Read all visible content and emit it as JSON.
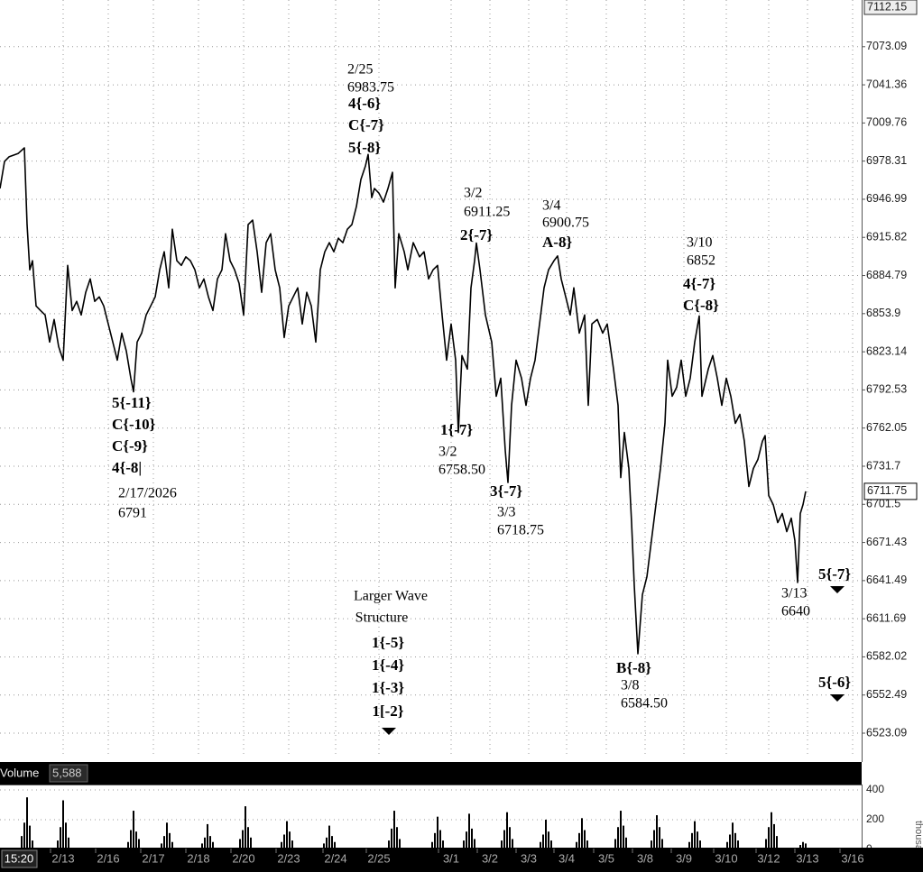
{
  "chart_data": {
    "type": "line",
    "log_scale": true,
    "grid": true,
    "xlim": [
      0,
      955
    ],
    "xticks": [
      {
        "value": 70,
        "label": "2/13"
      },
      {
        "value": 120,
        "label": "2/16"
      },
      {
        "value": 170,
        "label": "2/17"
      },
      {
        "value": 220,
        "label": "2/18"
      },
      {
        "value": 270,
        "label": "2/20"
      },
      {
        "value": 320,
        "label": "2/23"
      },
      {
        "value": 372,
        "label": "2/24"
      },
      {
        "value": 420,
        "label": "2/25"
      },
      {
        "value": 500,
        "label": "3/1"
      },
      {
        "value": 543,
        "label": "3/2"
      },
      {
        "value": 586,
        "label": "3/3"
      },
      {
        "value": 628,
        "label": "3/4"
      },
      {
        "value": 672,
        "label": "3/5"
      },
      {
        "value": 715,
        "label": "3/8"
      },
      {
        "value": 758,
        "label": "3/9"
      },
      {
        "value": 805,
        "label": "3/10"
      },
      {
        "value": 852,
        "label": "3/12"
      },
      {
        "value": 895,
        "label": "3/13"
      },
      {
        "value": 945,
        "label": "3/16"
      }
    ],
    "cursor_label": "15:20",
    "ylim": [
      6504.4,
      7112.15
    ],
    "yticks": [
      7073.09,
      7041.36,
      7009.76,
      6978.31,
      6946.99,
      6915.82,
      6884.79,
      6853.9,
      6823.14,
      6792.53,
      6762.05,
      6731.7,
      6701.5,
      6671.43,
      6641.49,
      6611.69,
      6582.02,
      6552.49,
      6523.09
    ],
    "last_price": 6711.75,
    "x": [
      0,
      5,
      10,
      20,
      27,
      30,
      33,
      36,
      40,
      45,
      50,
      55,
      60,
      65,
      70,
      75,
      80,
      85,
      90,
      95,
      100,
      105,
      110,
      115,
      120,
      125,
      130,
      135,
      140,
      145,
      148,
      152,
      157,
      162,
      167,
      172,
      177,
      182,
      187,
      191,
      196,
      201,
      206,
      211,
      216,
      221,
      226,
      231,
      236,
      241,
      246,
      250,
      255,
      260,
      265,
      270,
      275,
      280,
      285,
      290,
      295,
      300,
      305,
      310,
      315,
      320,
      325,
      330,
      335,
      340,
      345,
      350,
      355,
      360,
      365,
      370,
      375,
      380,
      385,
      390,
      395,
      400,
      405,
      408,
      412,
      415,
      420,
      425,
      430,
      435,
      438,
      442,
      448,
      452,
      458,
      465,
      470,
      475,
      480,
      485,
      490,
      495,
      500,
      505,
      508,
      512,
      518,
      522,
      526,
      528,
      532,
      538,
      545,
      550,
      555,
      560,
      563,
      567,
      572,
      578,
      583,
      588,
      593,
      598,
      603,
      608,
      614,
      618,
      622,
      627,
      632,
      636,
      642,
      648,
      652,
      656,
      662,
      668,
      673,
      680,
      685,
      688,
      692,
      697,
      700,
      703,
      707,
      712,
      717,
      722,
      727,
      732,
      737,
      740,
      745,
      750,
      755,
      760,
      765,
      770,
      775,
      778,
      785,
      790,
      795,
      800,
      805,
      810,
      815,
      820,
      825,
      830,
      835,
      840,
      845,
      848,
      852,
      857,
      862,
      867,
      872,
      877,
      881,
      884,
      887,
      890,
      893
    ],
    "series": [
      {
        "color": "#000000",
        "values": [
          6955.8,
          6978,
          6981.8,
          6984.5,
          6989.2,
          6926.2,
          6889.4,
          6896.8,
          6860.1,
          6856.4,
          6852.8,
          6831,
          6849.2,
          6827.3,
          6816.4,
          6893,
          6856.4,
          6863.8,
          6852.8,
          6871.1,
          6882,
          6863.8,
          6867.5,
          6860.1,
          6845.5,
          6831,
          6816.4,
          6838.2,
          6823.7,
          6801.9,
          6791,
          6831,
          6838.2,
          6852.8,
          6860.1,
          6867.5,
          6889.4,
          6904.1,
          6874.8,
          6922.5,
          6896.8,
          6893,
          6900,
          6896.8,
          6889.4,
          6874.8,
          6882,
          6867.5,
          6856.4,
          6882,
          6889.4,
          6918.8,
          6896.8,
          6889.4,
          6878.4,
          6852.8,
          6926.2,
          6929.9,
          6904.1,
          6871.1,
          6911.5,
          6918.8,
          6889.4,
          6874.8,
          6834.6,
          6860.1,
          6867.5,
          6874.8,
          6845.5,
          6871.1,
          6860.1,
          6831,
          6889.4,
          6904.1,
          6911.5,
          6904.1,
          6915.1,
          6911.5,
          6922.5,
          6926.2,
          6941,
          6963.2,
          6974.3,
          6983.75,
          6948.3,
          6955.8,
          6952,
          6944.7,
          6955.8,
          6969.1,
          6874.8,
          6918.8,
          6904.1,
          6889.4,
          6911.5,
          6900,
          6904.1,
          6882,
          6889.4,
          6893,
          6852.8,
          6816.4,
          6845.5,
          6816.4,
          6758.5,
          6820.1,
          6809.2,
          6874.8,
          6896.8,
          6911.25,
          6889.4,
          6852.8,
          6831,
          6787.5,
          6801.9,
          6744.2,
          6718.75,
          6780.2,
          6816.4,
          6801.9,
          6780.2,
          6801.9,
          6816.4,
          6845.5,
          6874.8,
          6889.4,
          6896.8,
          6900.75,
          6882,
          6867.5,
          6852.8,
          6874.8,
          6838.2,
          6852.8,
          6780.2,
          6845.5,
          6849.2,
          6838.2,
          6845.5,
          6809.2,
          6780.2,
          6722.7,
          6758.5,
          6729.9,
          6687.1,
          6637.5,
          6584.5,
          6630.5,
          6644.5,
          6672.9,
          6701.3,
          6729.9,
          6765.8,
          6816.4,
          6787.5,
          6794.7,
          6816.4,
          6787.5,
          6801.9,
          6831,
          6852,
          6787.5,
          6809.2,
          6820.1,
          6801.9,
          6780.2,
          6801.9,
          6787.5,
          6765.8,
          6773,
          6751.5,
          6715.6,
          6729.9,
          6737.1,
          6751.5,
          6756,
          6708.5,
          6701.3,
          6687.1,
          6694.2,
          6680,
          6690.6,
          6672.9,
          6640,
          6694.2,
          6701.3,
          6711.75
        ]
      }
    ],
    "annotations": [
      {
        "lines": [
          "2/25",
          "6983.75",
          "4{-6}",
          "C{-7}",
          "5{-8}"
        ]
      },
      {
        "lines": [
          "3/2",
          "6911.25",
          "2{-7}"
        ]
      },
      {
        "lines": [
          "3/4",
          "6900.75",
          "A-8}"
        ]
      },
      {
        "lines": [
          "3/10",
          "6852",
          "4{-7}",
          "C{-8}"
        ]
      },
      {
        "lines": [
          "5{-11}",
          "C{-10}",
          "C{-9}",
          "4{-8|",
          "2/17/2026",
          "6791"
        ]
      },
      {
        "lines": [
          "1{-7}",
          "3/2",
          "6758.50"
        ]
      },
      {
        "lines": [
          "3{-7}",
          "3/3",
          "6718.75"
        ]
      },
      {
        "lines": [
          "Larger Wave",
          "Structure",
          "1{-5}",
          "1{-4}",
          "1{-3}",
          "1[-2}"
        ]
      },
      {
        "lines": [
          "B{-8}",
          "3/8",
          "6584.50"
        ]
      },
      {
        "lines": [
          "3/13",
          "6640"
        ]
      },
      {
        "lines": [
          "5{-7}"
        ]
      },
      {
        "lines": [
          "5{-6}"
        ]
      }
    ],
    "volume": {
      "title": "Volume",
      "readout": "5,588",
      "unit_label": "thousan",
      "color": "#000000",
      "ylim": [
        0,
        436
      ],
      "yticks": [
        400,
        200,
        0
      ],
      "x": [
        24,
        27,
        30,
        33,
        36,
        64,
        67,
        70,
        73,
        76,
        142,
        145,
        148,
        151,
        154,
        179,
        182,
        185,
        188,
        191,
        224,
        227,
        230,
        233,
        236,
        266,
        269,
        272,
        275,
        278,
        312,
        315,
        318,
        321,
        324,
        359,
        362,
        365,
        368,
        371,
        431,
        434,
        437,
        440,
        443,
        479,
        482,
        485,
        488,
        491,
        514,
        517,
        520,
        523,
        526,
        556,
        559,
        562,
        565,
        568,
        599,
        602,
        605,
        608,
        611,
        639,
        642,
        645,
        648,
        651,
        682,
        685,
        688,
        691,
        694,
        722,
        725,
        728,
        731,
        734,
        764,
        767,
        770,
        773,
        776,
        806,
        809,
        812,
        815,
        818,
        849,
        852,
        855,
        858,
        861,
        887,
        890,
        893
      ],
      "values": [
        90,
        180,
        350,
        160,
        60,
        60,
        150,
        330,
        180,
        80,
        50,
        130,
        260,
        120,
        70,
        40,
        90,
        180,
        110,
        50,
        40,
        80,
        170,
        90,
        50,
        70,
        130,
        290,
        150,
        80,
        50,
        100,
        190,
        120,
        60,
        40,
        80,
        160,
        90,
        50,
        60,
        140,
        260,
        150,
        70,
        50,
        110,
        220,
        130,
        60,
        60,
        120,
        240,
        140,
        70,
        60,
        130,
        250,
        150,
        70,
        50,
        100,
        200,
        120,
        60,
        50,
        110,
        210,
        130,
        60,
        70,
        150,
        260,
        160,
        80,
        60,
        130,
        230,
        150,
        70,
        50,
        110,
        190,
        120,
        60,
        50,
        100,
        180,
        110,
        60,
        70,
        150,
        250,
        170,
        90,
        30,
        50,
        40
      ]
    }
  }
}
